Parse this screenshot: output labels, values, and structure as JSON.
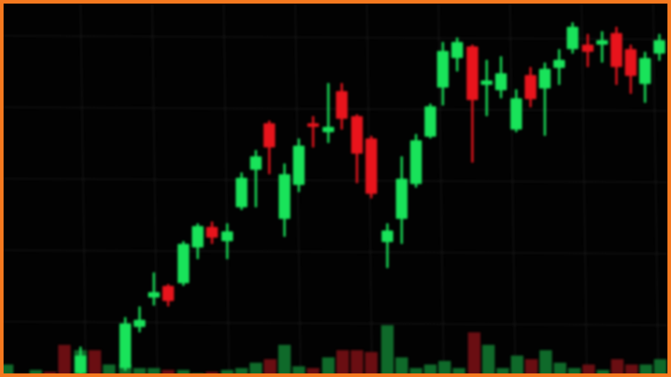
{
  "colors": {
    "frame": "#f5791f",
    "background": "#020202",
    "up": "#19e35a",
    "down": "#e8141c",
    "volume_up": "#0f6a2a",
    "volume_down": "#6a0e12",
    "grid": "#1a1a1a"
  }
}
